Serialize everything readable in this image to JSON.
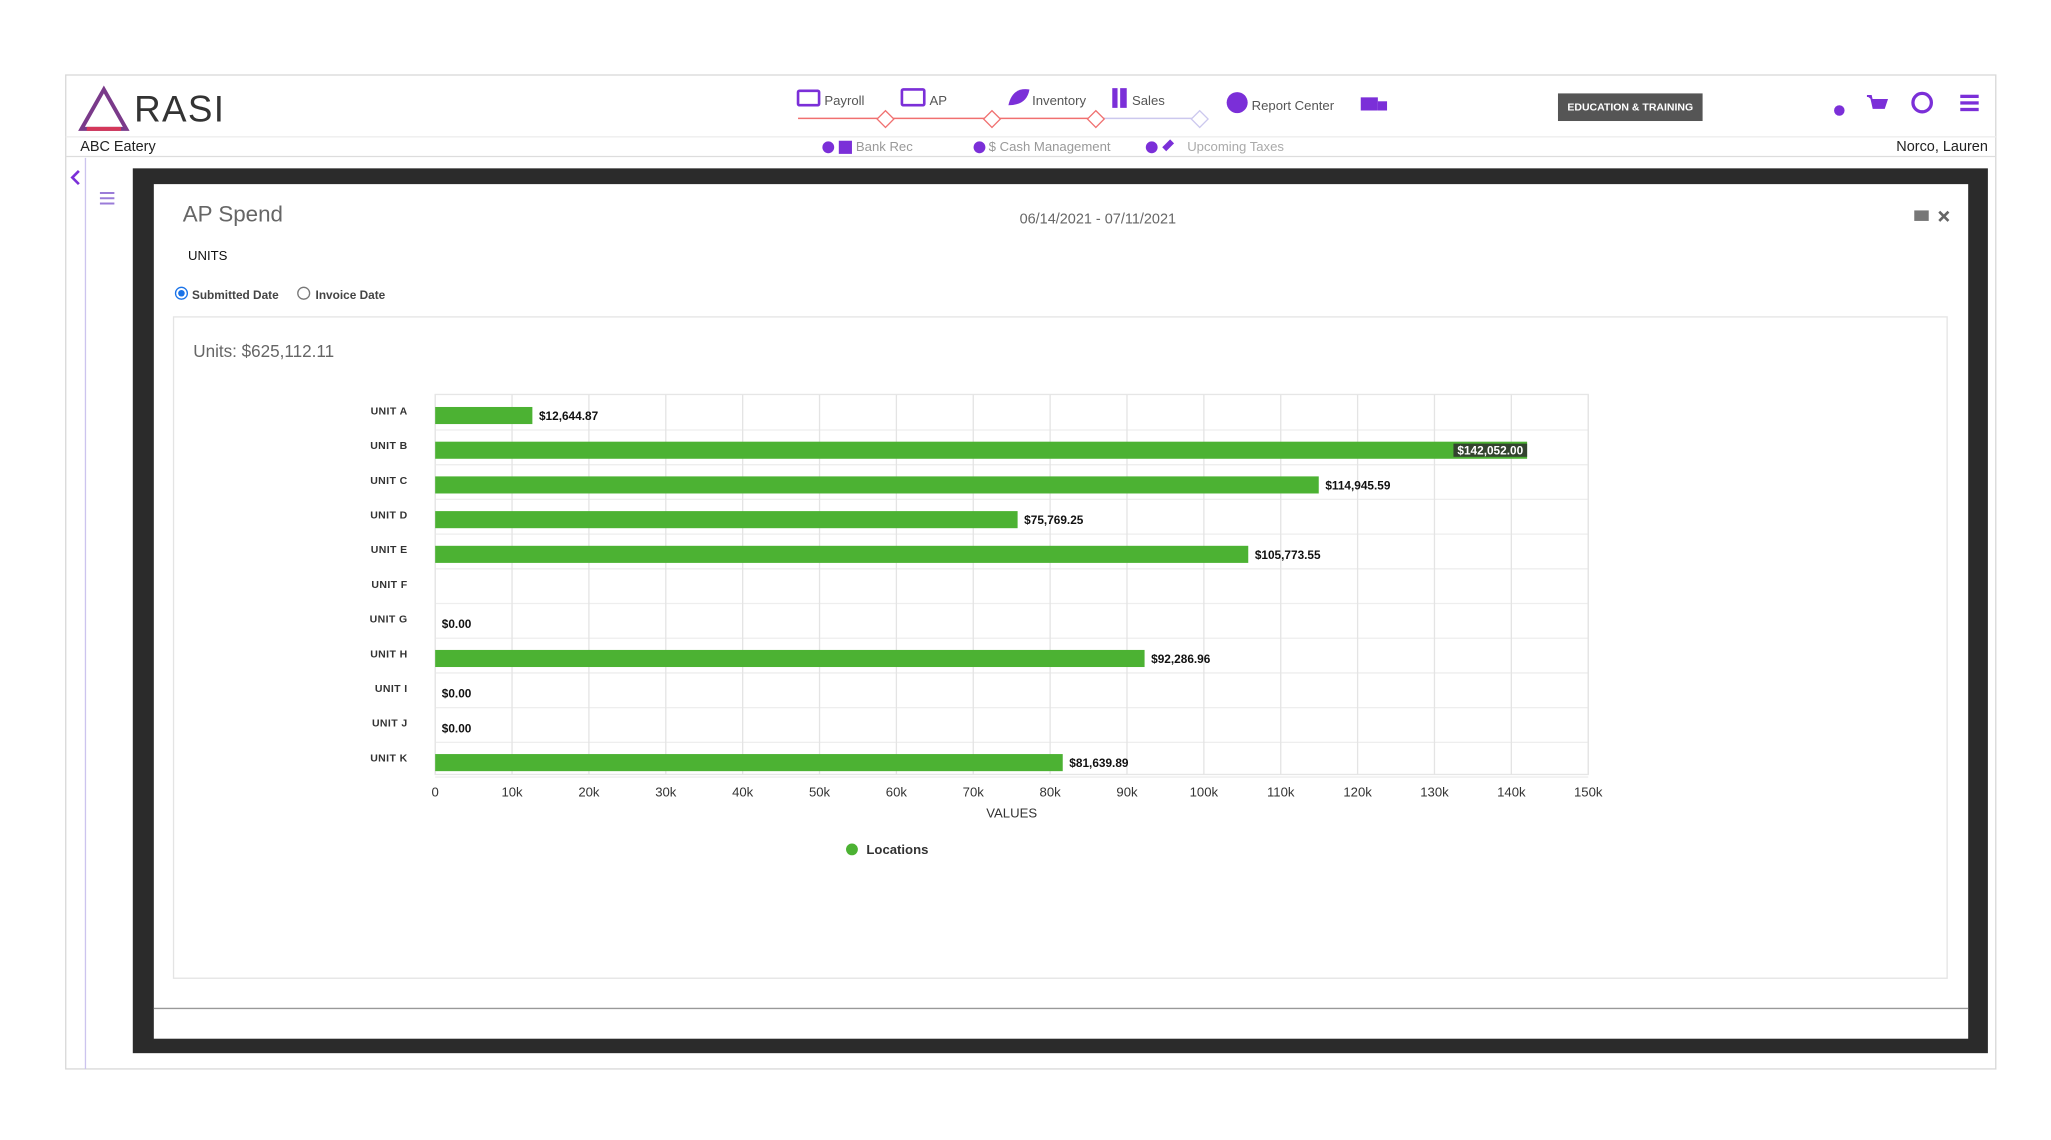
{
  "header": {
    "logo": "RASI",
    "company": "ABC Eatery",
    "user": "Norco, Lauren",
    "button": "EDUCATION & TRAINING",
    "nav": [
      "Payroll",
      "AP",
      "Inventory",
      "Sales",
      "Report Center"
    ],
    "subnav": [
      "Bank Rec",
      "$ Cash Management",
      "Upcoming Taxes"
    ]
  },
  "panel": {
    "title": "AP Spend",
    "date_range": "06/14/2021 - 07/11/2021",
    "section": "UNITS",
    "radios": [
      "Submitted Date",
      "Invoice Date"
    ]
  },
  "chart_data": {
    "type": "hbar",
    "title": "Units: $625,112.11",
    "categories": [
      "UNIT A",
      "UNIT B",
      "UNIT C",
      "UNIT D",
      "UNIT E",
      "UNIT F",
      "UNIT G",
      "UNIT H",
      "UNIT I",
      "UNIT J",
      "UNIT K"
    ],
    "series": [
      {
        "name": "Locations",
        "color": "#4cb233",
        "values": [
          12644.87,
          142052.0,
          114945.59,
          75769.25,
          105773.55,
          null,
          0,
          92286.96,
          0,
          0,
          81639.89
        ],
        "value_labels": [
          "$12,644.87",
          "$142,052.00",
          "$114,945.59",
          "$75,769.25",
          "$105,773.55",
          null,
          "$0.00",
          "$92,286.96",
          "$0.00",
          "$0.00",
          "$81,639.89"
        ]
      }
    ],
    "xlabel": "VALUES",
    "xlim": [
      0,
      150000
    ],
    "xticks": [
      0,
      {
        "value": 10000,
        "label": "10k"
      },
      {
        "value": 20000,
        "label": "20k"
      },
      {
        "value": 30000,
        "label": "30k"
      },
      {
        "value": 40000,
        "label": "40k"
      },
      {
        "value": 50000,
        "label": "50k"
      },
      {
        "value": 60000,
        "label": "60k"
      },
      {
        "value": 70000,
        "label": "70k"
      },
      {
        "value": 80000,
        "label": "80k"
      },
      {
        "value": 90000,
        "label": "90k"
      },
      {
        "value": 100000,
        "label": "100k"
      },
      {
        "value": 110000,
        "label": "110k"
      },
      {
        "value": 120000,
        "label": "120k"
      },
      {
        "value": 130000,
        "label": "130k"
      },
      {
        "value": 140000,
        "label": "140k"
      },
      {
        "value": 150000,
        "label": "150k"
      }
    ],
    "grid": true,
    "legend": "bottom"
  }
}
